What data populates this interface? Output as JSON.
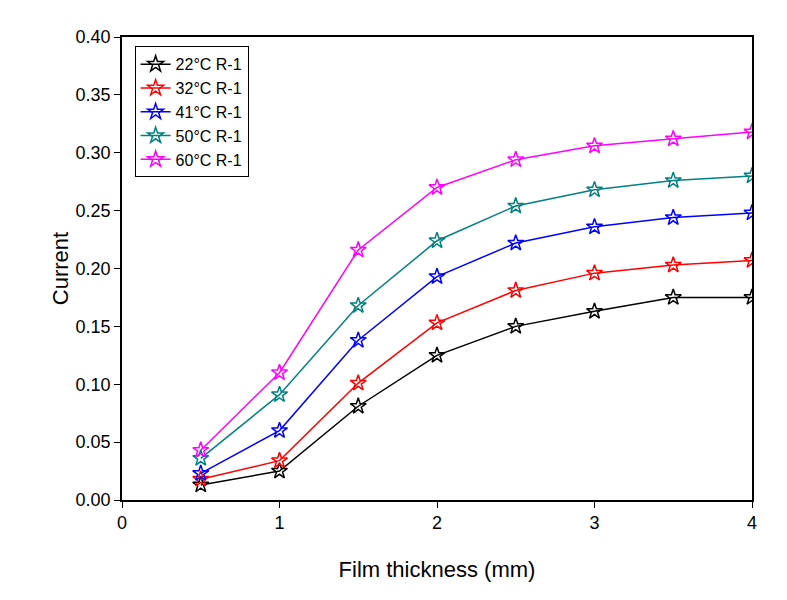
{
  "chart_data": {
    "type": "line",
    "x_label": "Film thickness (mm)",
    "y_label": "Current",
    "x": [
      0.5,
      1,
      1.5,
      2,
      2.5,
      3,
      3.5,
      4
    ],
    "series": [
      {
        "name": "22°C R-1",
        "color": "#000000",
        "marker": "star-open",
        "values": [
          0.013,
          0.025,
          0.081,
          0.125,
          0.15,
          0.163,
          0.175,
          0.175
        ]
      },
      {
        "name": "32°C R-1",
        "color": "#ff0000",
        "marker": "star-open",
        "values": [
          0.018,
          0.034,
          0.101,
          0.153,
          0.181,
          0.196,
          0.203,
          0.207
        ]
      },
      {
        "name": "41°C R-1",
        "color": "#0000ff",
        "marker": "star-open",
        "values": [
          0.023,
          0.06,
          0.138,
          0.193,
          0.222,
          0.236,
          0.244,
          0.248
        ]
      },
      {
        "name": "50°C R-1",
        "color": "#008080",
        "marker": "star-open",
        "values": [
          0.036,
          0.091,
          0.168,
          0.224,
          0.254,
          0.268,
          0.276,
          0.28
        ]
      },
      {
        "name": "60°C R-1",
        "color": "#ff00ff",
        "marker": "star-open",
        "values": [
          0.043,
          0.11,
          0.216,
          0.27,
          0.294,
          0.306,
          0.312,
          0.318
        ]
      }
    ],
    "xlim": [
      0,
      4
    ],
    "xticks": [
      0,
      1,
      2,
      3,
      4
    ],
    "ylim": [
      0,
      0.4
    ],
    "yticks": [
      {
        "value": 0,
        "label": "0.00"
      },
      {
        "value": 0.05,
        "label": "0.05"
      },
      {
        "value": 0.1,
        "label": "0.10"
      },
      {
        "value": 0.15,
        "label": "0.15"
      },
      {
        "value": 0.2,
        "label": "0.20"
      },
      {
        "value": 0.25,
        "label": "0.25"
      },
      {
        "value": 0.3,
        "label": "0.30"
      },
      {
        "value": 0.35,
        "label": "0.35"
      },
      {
        "value": 0.4,
        "label": "0.40"
      }
    ],
    "grid": false,
    "legend": "top-left"
  }
}
